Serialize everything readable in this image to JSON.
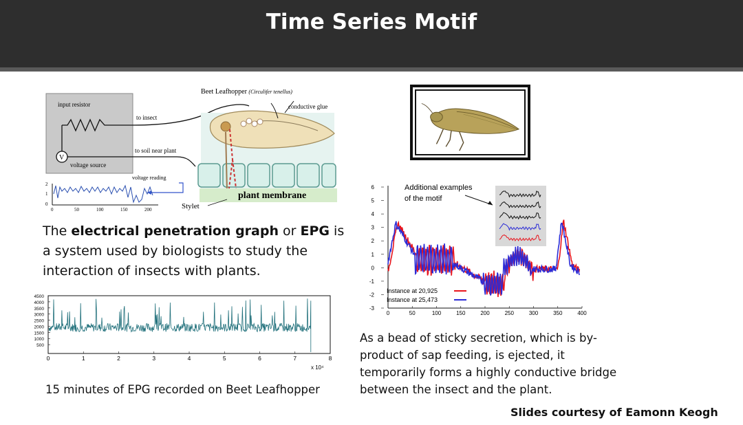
{
  "slide": {
    "title": "Time Series Motif",
    "credit": "Slides courtesy of Eamonn Keogh"
  },
  "diagram": {
    "title_prefix": "Beet Leafhopper",
    "title_species": "(Circulifer tenellus)",
    "labels": {
      "input_resistor": "input resistor",
      "to_insect": "to insect",
      "conductive_glue": "conductive glue",
      "to_soil": "to soil near plant",
      "voltage_source": "voltage source",
      "voltage_reading": "voltage reading",
      "plant_membrane": "plant membrane",
      "stylet": "Stylet",
      "v_symbol": "V"
    },
    "mini_plot": {
      "y_ticks": [
        "0",
        "1",
        "2"
      ],
      "x_ticks": [
        "0",
        "50",
        "100",
        "150",
        "200"
      ]
    }
  },
  "description": {
    "part1": "The ",
    "bold1": "electrical penetration graph",
    "part2": " or ",
    "bold2": "EPG",
    "part3": " is a system used by biologists to study the interaction of insects with plants."
  },
  "epg_plot": {
    "y_ticks": [
      "4500",
      "4000",
      "3500",
      "3000",
      "2500",
      "2000",
      "1500",
      "1000",
      "500"
    ],
    "x_ticks": [
      "0",
      "1",
      "2",
      "3",
      "4",
      "5",
      "6",
      "7",
      "8"
    ],
    "x_multiplier": "x 10⁴",
    "caption": "15 minutes of EPG recorded on Beet Leafhopper",
    "line_color": "#1f6f7a"
  },
  "chart_data": {
    "type": "line",
    "y_ticks": [
      "6",
      "5",
      "4",
      "3",
      "2",
      "1",
      "0",
      "-1",
      "-2",
      "-3"
    ],
    "x_ticks": [
      "0",
      "50",
      "100",
      "150",
      "200",
      "250",
      "300",
      "350",
      "400"
    ],
    "ylim": [
      -3,
      6
    ],
    "xlim": [
      0,
      400
    ],
    "annotation": "Additional examples of the motif",
    "annotation_line1": "Additional examples",
    "annotation_line2": "of the motif",
    "series": [
      {
        "name": "Instance at 20,925",
        "color": "#e8141c"
      },
      {
        "name": "Instance at 25,473",
        "color": "#2b2bd6"
      }
    ]
  },
  "secretion_text": "As a bead of sticky secretion, which is by-product of sap feeding, is ejected, it temporarily forms a highly conductive bridge between the insect and the plant."
}
